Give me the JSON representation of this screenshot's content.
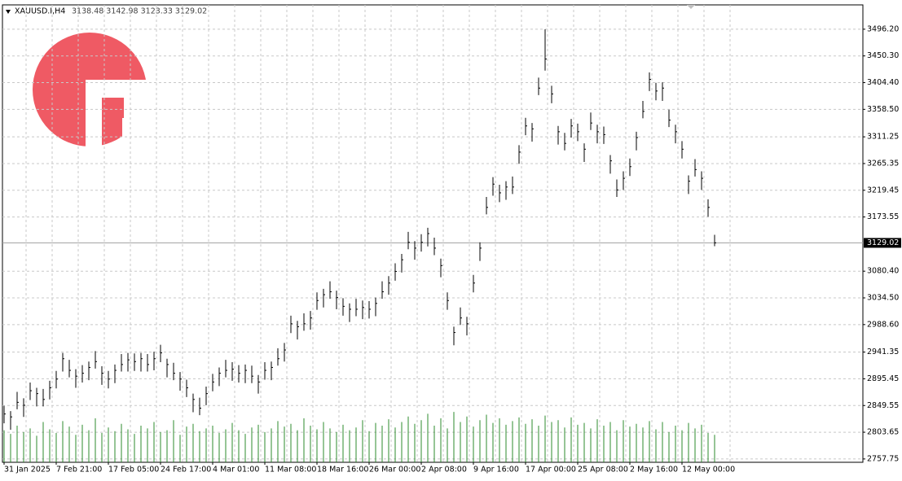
{
  "chart_data": {
    "type": "ohlc",
    "title": "XAUUSD.I,H4",
    "subtitle": "3138.48 3142.98 3123.33 3129.02",
    "categories": [
      "31 Jan 2025",
      null,
      null,
      null,
      null,
      null,
      null,
      null,
      "7 Feb 21:00",
      null,
      null,
      null,
      null,
      null,
      null,
      null,
      "17 Feb 05:00",
      null,
      null,
      null,
      null,
      null,
      null,
      null,
      "24 Feb 17:00",
      null,
      null,
      null,
      null,
      null,
      null,
      null,
      "4 Mar 01:00",
      null,
      null,
      null,
      null,
      null,
      null,
      null,
      "11 Mar 08:00",
      null,
      null,
      null,
      null,
      null,
      null,
      null,
      "18 Mar 16:00",
      null,
      null,
      null,
      null,
      null,
      null,
      null,
      "26 Mar 00:00",
      null,
      null,
      null,
      null,
      null,
      null,
      null,
      "2 Apr 08:00",
      null,
      null,
      null,
      null,
      null,
      null,
      null,
      "9 Apr 16:00",
      null,
      null,
      null,
      null,
      null,
      null,
      null,
      "17 Apr 00:00",
      null,
      null,
      null,
      null,
      null,
      null,
      null,
      "25 Apr 08:00",
      null,
      null,
      null,
      null,
      null,
      null,
      null,
      "2 May 16:00",
      null,
      null,
      null,
      null,
      null,
      null,
      null,
      "12 May 00:00",
      null,
      null,
      null,
      null,
      null
    ],
    "high": [
      2849,
      2840,
      2873,
      2862,
      2889,
      2880,
      2878,
      2892,
      2909,
      2940,
      2928,
      2912,
      2919,
      2925,
      2943,
      2917,
      2909,
      2920,
      2938,
      2940,
      2939,
      2940,
      2938,
      2942,
      2954,
      2930,
      2923,
      2907,
      2894,
      2870,
      2863,
      2882,
      2904,
      2915,
      2928,
      2924,
      2919,
      2920,
      2918,
      2902,
      2924,
      2925,
      2948,
      2957,
      3004,
      2995,
      3008,
      3012,
      3044,
      3050,
      3063,
      3047,
      3034,
      3025,
      3033,
      3030,
      3029,
      3035,
      3063,
      3072,
      3094,
      3110,
      3148,
      3132,
      3144,
      3155,
      3138,
      3102,
      3044,
      2985,
      3018,
      3002,
      3074,
      3130,
      3208,
      3242,
      3229,
      3235,
      3243,
      3297,
      3344,
      3335,
      3413,
      3496,
      3399,
      3330,
      3318,
      3342,
      3334,
      3300,
      3353,
      3332,
      3329,
      3280,
      3238,
      3252,
      3274,
      3320,
      3373,
      3422,
      3404,
      3405,
      3358,
      3332,
      3304,
      3245,
      3273,
      3252,
      3204,
      3142.98
    ],
    "low": [
      2819,
      2808,
      2843,
      2830,
      2859,
      2848,
      2848,
      2860,
      2879,
      2908,
      2898,
      2880,
      2889,
      2893,
      2913,
      2885,
      2879,
      2888,
      2908,
      2908,
      2909,
      2908,
      2908,
      2910,
      2924,
      2898,
      2893,
      2875,
      2864,
      2838,
      2833,
      2850,
      2874,
      2883,
      2898,
      2892,
      2889,
      2888,
      2888,
      2870,
      2894,
      2893,
      2918,
      2925,
      2974,
      2963,
      2978,
      2980,
      3014,
      3018,
      3033,
      3015,
      3004,
      2993,
      3003,
      2998,
      2999,
      3003,
      3033,
      3040,
      3064,
      3078,
      3118,
      3100,
      3114,
      3123,
      3108,
      3070,
      3014,
      2953,
      2988,
      2970,
      3044,
      3098,
      3178,
      3210,
      3199,
      3203,
      3213,
      3265,
      3314,
      3303,
      3383,
      3425,
      3369,
      3298,
      3288,
      3310,
      3304,
      3268,
      3323,
      3300,
      3299,
      3248,
      3208,
      3220,
      3244,
      3288,
      3343,
      3390,
      3374,
      3373,
      3328,
      3300,
      3274,
      3213,
      3243,
      3220,
      3174,
      3123.33
    ],
    "close": [
      2835,
      2830,
      2855,
      2850,
      2875,
      2870,
      2860,
      2880,
      2895,
      2930,
      2910,
      2900,
      2905,
      2915,
      2925,
      2905,
      2895,
      2910,
      2920,
      2928,
      2925,
      2930,
      2920,
      2930,
      2940,
      2920,
      2905,
      2895,
      2880,
      2860,
      2845,
      2870,
      2890,
      2905,
      2910,
      2912,
      2905,
      2910,
      2900,
      2890,
      2910,
      2915,
      2930,
      2945,
      2990,
      2985,
      2990,
      3000,
      3030,
      3040,
      3045,
      3035,
      3020,
      3015,
      3015,
      3018,
      3015,
      3025,
      3045,
      3060,
      3080,
      3100,
      3130,
      3120,
      3130,
      3145,
      3120,
      3090,
      3030,
      2975,
      3000,
      2990,
      3060,
      3120,
      3190,
      3230,
      3215,
      3225,
      3225,
      3285,
      3330,
      3325,
      3395,
      3445,
      3385,
      3320,
      3300,
      3330,
      3320,
      3290,
      3335,
      3320,
      3315,
      3270,
      3220,
      3240,
      3260,
      3310,
      3355,
      3410,
      3390,
      3395,
      3340,
      3320,
      3290,
      3235,
      3255,
      3240,
      3190,
      3129.02
    ],
    "volume": [
      70,
      62,
      80,
      66,
      74,
      58,
      88,
      72,
      64,
      90,
      78,
      60,
      82,
      70,
      96,
      64,
      76,
      68,
      84,
      72,
      62,
      80,
      74,
      88,
      66,
      70,
      92,
      60,
      78,
      84,
      68,
      74,
      80,
      64,
      72,
      86,
      70,
      62,
      76,
      82,
      66,
      74,
      90,
      78,
      84,
      70,
      96,
      80,
      72,
      88,
      74,
      66,
      82,
      70,
      76,
      92,
      68,
      86,
      80,
      94,
      76,
      88,
      100,
      84,
      92,
      106,
      80,
      96,
      74,
      110,
      88,
      100,
      78,
      92,
      104,
      86,
      96,
      82,
      90,
      98,
      84,
      94,
      80,
      102,
      88,
      92,
      76,
      98,
      82,
      86,
      74,
      94,
      80,
      88,
      70,
      92,
      78,
      84,
      76,
      90,
      72,
      88,
      66,
      80,
      70,
      86,
      74,
      82,
      64,
      60
    ],
    "up_color": "#000000",
    "volume_color": "#2e8b2e",
    "ylim": [
      2752,
      3538
    ],
    "y2lim": [
      0,
      1000
    ],
    "yticks": [
      {
        "value": 2757.75,
        "label": "2757.75"
      },
      {
        "value": 2803.65,
        "label": "2803.65"
      },
      {
        "value": 2849.55,
        "label": "2849.55"
      },
      {
        "value": 2895.45,
        "label": "2895.45"
      },
      {
        "value": 2941.35,
        "label": "2941.35"
      },
      {
        "value": 2988.6,
        "label": "2988.60"
      },
      {
        "value": 3034.5,
        "label": "3034.50"
      },
      {
        "value": 3080.4,
        "label": "3080.40"
      },
      {
        "value": 3173.55,
        "label": "3173.55"
      },
      {
        "value": 3219.45,
        "label": "3219.45"
      },
      {
        "value": 3265.35,
        "label": "3265.35"
      },
      {
        "value": 3311.25,
        "label": "3311.25"
      },
      {
        "value": 3358.5,
        "label": "3358.50"
      },
      {
        "value": 3404.4,
        "label": "3404.40"
      },
      {
        "value": 3450.3,
        "label": "3450.30"
      },
      {
        "value": 3496.2,
        "label": "3496.20"
      }
    ],
    "current_price": {
      "value": 3129.02,
      "label": "3129.02"
    },
    "grid": true
  }
}
